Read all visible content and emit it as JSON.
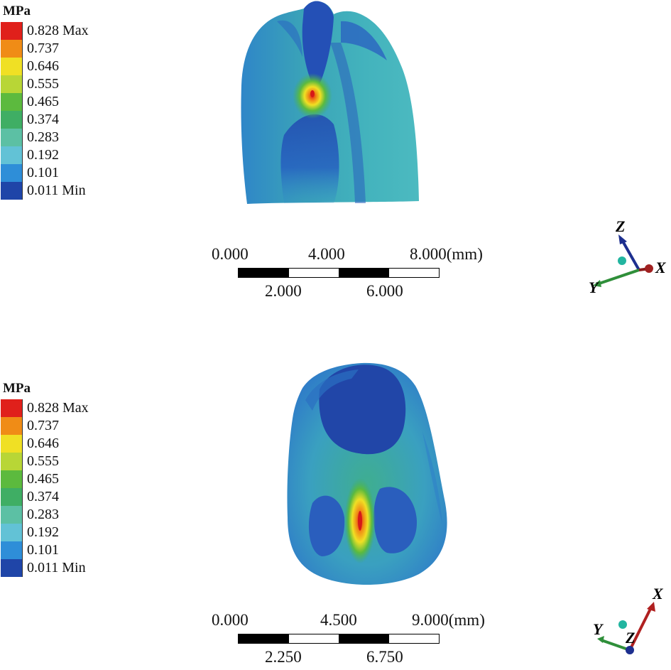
{
  "panels": [
    {
      "legend": {
        "unit": "MPa",
        "entries": [
          {
            "label": "0.828 Max",
            "color": "#e0201b"
          },
          {
            "label": "0.737",
            "color": "#f08c16"
          },
          {
            "label": "0.646",
            "color": "#f0e024"
          },
          {
            "label": "0.555",
            "color": "#b8d636"
          },
          {
            "label": "0.465",
            "color": "#5cba3e"
          },
          {
            "label": "0.374",
            "color": "#3fae64"
          },
          {
            "label": "0.283",
            "color": "#5cc0a4"
          },
          {
            "label": "0.192",
            "color": "#62c2d6"
          },
          {
            "label": "0.101",
            "color": "#2e8ed8"
          },
          {
            "label": "0.011 Min",
            "color": "#1f45a8"
          }
        ]
      },
      "scale": {
        "top_labels": [
          "0.000",
          "4.000",
          "8.000(mm)"
        ],
        "bottom_labels": [
          "2.000",
          "6.000"
        ]
      },
      "axes": {
        "labels": [
          "Z",
          "X",
          "Y"
        ]
      }
    },
    {
      "legend": {
        "unit": "MPa",
        "entries": [
          {
            "label": "0.828 Max",
            "color": "#e0201b"
          },
          {
            "label": "0.737",
            "color": "#f08c16"
          },
          {
            "label": "0.646",
            "color": "#f0e024"
          },
          {
            "label": "0.555",
            "color": "#b8d636"
          },
          {
            "label": "0.465",
            "color": "#5cba3e"
          },
          {
            "label": "0.374",
            "color": "#3fae64"
          },
          {
            "label": "0.283",
            "color": "#5cc0a4"
          },
          {
            "label": "0.192",
            "color": "#62c2d6"
          },
          {
            "label": "0.101",
            "color": "#2e8ed8"
          },
          {
            "label": "0.011 Min",
            "color": "#1f45a8"
          }
        ]
      },
      "scale": {
        "top_labels": [
          "0.000",
          "4.500",
          "9.000(mm)"
        ],
        "bottom_labels": [
          "2.250",
          "6.750"
        ]
      },
      "axes": {
        "labels": [
          "X",
          "Y",
          "Z"
        ]
      }
    }
  ]
}
